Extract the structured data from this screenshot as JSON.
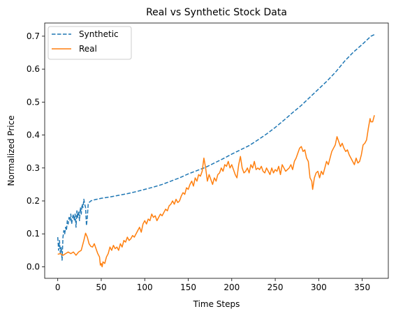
{
  "chart_data": {
    "type": "line",
    "title": "Real vs Synthetic Stock Data",
    "xlabel": "Time Steps",
    "ylabel": "Normalized Price",
    "xlim": [
      -15,
      380
    ],
    "ylim": [
      -0.035,
      0.74
    ],
    "xticks": [
      0,
      50,
      100,
      150,
      200,
      250,
      300,
      350
    ],
    "yticks": [
      0.0,
      0.1,
      0.2,
      0.3,
      0.4,
      0.5,
      0.6,
      0.7
    ],
    "xtick_labels": [
      "0",
      "50",
      "100",
      "150",
      "200",
      "250",
      "300",
      "350"
    ],
    "ytick_labels": [
      "0.0",
      "0.1",
      "0.2",
      "0.3",
      "0.4",
      "0.5",
      "0.6",
      "0.7"
    ],
    "grid": false,
    "legend_position": "upper-left",
    "series": [
      {
        "name": "Synthetic",
        "style": "dashed",
        "color": "#1f77b4",
        "points": [
          [
            0,
            0.09
          ],
          [
            1,
            0.05
          ],
          [
            2,
            0.08
          ],
          [
            3,
            0.04
          ],
          [
            4,
            0.06
          ],
          [
            5,
            0.02
          ],
          [
            6,
            0.09
          ],
          [
            7,
            0.11
          ],
          [
            8,
            0.1
          ],
          [
            9,
            0.12
          ],
          [
            10,
            0.11
          ],
          [
            11,
            0.14
          ],
          [
            12,
            0.13
          ],
          [
            13,
            0.15
          ],
          [
            14,
            0.14
          ],
          [
            15,
            0.16
          ],
          [
            16,
            0.13
          ],
          [
            17,
            0.15
          ],
          [
            18,
            0.16
          ],
          [
            19,
            0.14
          ],
          [
            20,
            0.16
          ],
          [
            21,
            0.12
          ],
          [
            22,
            0.17
          ],
          [
            23,
            0.15
          ],
          [
            24,
            0.17
          ],
          [
            25,
            0.14
          ],
          [
            26,
            0.18
          ],
          [
            27,
            0.16
          ],
          [
            28,
            0.19
          ],
          [
            29,
            0.18
          ],
          [
            30,
            0.205
          ],
          [
            31,
            0.19
          ],
          [
            32,
            0.18
          ],
          [
            33,
            0.125
          ],
          [
            34,
            0.15
          ],
          [
            35,
            0.19
          ],
          [
            36,
            0.195
          ],
          [
            38,
            0.2
          ],
          [
            40,
            0.202
          ],
          [
            45,
            0.205
          ],
          [
            50,
            0.208
          ],
          [
            60,
            0.212
          ],
          [
            70,
            0.217
          ],
          [
            80,
            0.222
          ],
          [
            90,
            0.228
          ],
          [
            100,
            0.235
          ],
          [
            110,
            0.242
          ],
          [
            120,
            0.25
          ],
          [
            130,
            0.26
          ],
          [
            140,
            0.27
          ],
          [
            150,
            0.282
          ],
          [
            160,
            0.292
          ],
          [
            170,
            0.302
          ],
          [
            180,
            0.315
          ],
          [
            190,
            0.328
          ],
          [
            200,
            0.342
          ],
          [
            210,
            0.355
          ],
          [
            220,
            0.368
          ],
          [
            230,
            0.385
          ],
          [
            240,
            0.403
          ],
          [
            250,
            0.423
          ],
          [
            260,
            0.445
          ],
          [
            270,
            0.468
          ],
          [
            280,
            0.49
          ],
          [
            290,
            0.515
          ],
          [
            300,
            0.54
          ],
          [
            310,
            0.565
          ],
          [
            320,
            0.593
          ],
          [
            330,
            0.625
          ],
          [
            340,
            0.652
          ],
          [
            350,
            0.675
          ],
          [
            360,
            0.7
          ],
          [
            364,
            0.705
          ]
        ]
      },
      {
        "name": "Real",
        "style": "solid",
        "color": "#ff7f0e",
        "points": [
          [
            0,
            0.038
          ],
          [
            3,
            0.04
          ],
          [
            6,
            0.035
          ],
          [
            9,
            0.04
          ],
          [
            12,
            0.045
          ],
          [
            15,
            0.04
          ],
          [
            18,
            0.045
          ],
          [
            21,
            0.035
          ],
          [
            24,
            0.045
          ],
          [
            27,
            0.05
          ],
          [
            30,
            0.08
          ],
          [
            32,
            0.102
          ],
          [
            34,
            0.09
          ],
          [
            36,
            0.07
          ],
          [
            38,
            0.062
          ],
          [
            40,
            0.06
          ],
          [
            42,
            0.07
          ],
          [
            44,
            0.055
          ],
          [
            46,
            0.04
          ],
          [
            48,
            0.03
          ],
          [
            49,
            0.005
          ],
          [
            50,
            0.01
          ],
          [
            51,
            0.0
          ],
          [
            52,
            0.015
          ],
          [
            54,
            0.01
          ],
          [
            56,
            0.03
          ],
          [
            58,
            0.04
          ],
          [
            60,
            0.06
          ],
          [
            62,
            0.05
          ],
          [
            64,
            0.065
          ],
          [
            66,
            0.055
          ],
          [
            68,
            0.06
          ],
          [
            70,
            0.05
          ],
          [
            72,
            0.07
          ],
          [
            74,
            0.06
          ],
          [
            76,
            0.08
          ],
          [
            78,
            0.075
          ],
          [
            80,
            0.09
          ],
          [
            82,
            0.08
          ],
          [
            84,
            0.085
          ],
          [
            86,
            0.095
          ],
          [
            88,
            0.09
          ],
          [
            90,
            0.1
          ],
          [
            92,
            0.11
          ],
          [
            94,
            0.12
          ],
          [
            96,
            0.105
          ],
          [
            98,
            0.13
          ],
          [
            100,
            0.14
          ],
          [
            102,
            0.13
          ],
          [
            104,
            0.145
          ],
          [
            106,
            0.14
          ],
          [
            108,
            0.16
          ],
          [
            110,
            0.15
          ],
          [
            112,
            0.155
          ],
          [
            114,
            0.14
          ],
          [
            116,
            0.15
          ],
          [
            118,
            0.16
          ],
          [
            120,
            0.155
          ],
          [
            122,
            0.165
          ],
          [
            124,
            0.175
          ],
          [
            126,
            0.17
          ],
          [
            128,
            0.185
          ],
          [
            130,
            0.19
          ],
          [
            132,
            0.2
          ],
          [
            134,
            0.19
          ],
          [
            136,
            0.205
          ],
          [
            138,
            0.195
          ],
          [
            140,
            0.2
          ],
          [
            142,
            0.215
          ],
          [
            144,
            0.225
          ],
          [
            146,
            0.22
          ],
          [
            148,
            0.24
          ],
          [
            150,
            0.235
          ],
          [
            152,
            0.25
          ],
          [
            154,
            0.26
          ],
          [
            156,
            0.245
          ],
          [
            158,
            0.27
          ],
          [
            160,
            0.26
          ],
          [
            162,
            0.28
          ],
          [
            164,
            0.275
          ],
          [
            166,
            0.29
          ],
          [
            168,
            0.33
          ],
          [
            170,
            0.3
          ],
          [
            172,
            0.26
          ],
          [
            174,
            0.28
          ],
          [
            176,
            0.265
          ],
          [
            178,
            0.25
          ],
          [
            180,
            0.27
          ],
          [
            182,
            0.26
          ],
          [
            184,
            0.28
          ],
          [
            186,
            0.285
          ],
          [
            188,
            0.3
          ],
          [
            190,
            0.29
          ],
          [
            192,
            0.31
          ],
          [
            194,
            0.305
          ],
          [
            196,
            0.32
          ],
          [
            198,
            0.3
          ],
          [
            200,
            0.31
          ],
          [
            202,
            0.295
          ],
          [
            204,
            0.28
          ],
          [
            206,
            0.27
          ],
          [
            208,
            0.31
          ],
          [
            210,
            0.335
          ],
          [
            212,
            0.3
          ],
          [
            214,
            0.285
          ],
          [
            216,
            0.29
          ],
          [
            218,
            0.3
          ],
          [
            220,
            0.285
          ],
          [
            222,
            0.31
          ],
          [
            224,
            0.3
          ],
          [
            226,
            0.32
          ],
          [
            228,
            0.295
          ],
          [
            230,
            0.3
          ],
          [
            232,
            0.295
          ],
          [
            234,
            0.305
          ],
          [
            236,
            0.29
          ],
          [
            238,
            0.285
          ],
          [
            240,
            0.3
          ],
          [
            242,
            0.29
          ],
          [
            244,
            0.28
          ],
          [
            246,
            0.3
          ],
          [
            248,
            0.285
          ],
          [
            250,
            0.295
          ],
          [
            252,
            0.29
          ],
          [
            254,
            0.305
          ],
          [
            256,
            0.28
          ],
          [
            258,
            0.31
          ],
          [
            260,
            0.3
          ],
          [
            262,
            0.29
          ],
          [
            264,
            0.295
          ],
          [
            266,
            0.3
          ],
          [
            268,
            0.31
          ],
          [
            270,
            0.295
          ],
          [
            272,
            0.32
          ],
          [
            274,
            0.33
          ],
          [
            276,
            0.345
          ],
          [
            278,
            0.36
          ],
          [
            280,
            0.365
          ],
          [
            282,
            0.35
          ],
          [
            284,
            0.355
          ],
          [
            286,
            0.33
          ],
          [
            288,
            0.32
          ],
          [
            290,
            0.27
          ],
          [
            292,
            0.26
          ],
          [
            293,
            0.235
          ],
          [
            295,
            0.27
          ],
          [
            297,
            0.285
          ],
          [
            299,
            0.29
          ],
          [
            301,
            0.27
          ],
          [
            303,
            0.29
          ],
          [
            305,
            0.28
          ],
          [
            307,
            0.3
          ],
          [
            309,
            0.32
          ],
          [
            311,
            0.31
          ],
          [
            313,
            0.33
          ],
          [
            315,
            0.35
          ],
          [
            317,
            0.36
          ],
          [
            319,
            0.37
          ],
          [
            321,
            0.395
          ],
          [
            323,
            0.38
          ],
          [
            325,
            0.365
          ],
          [
            327,
            0.375
          ],
          [
            329,
            0.36
          ],
          [
            331,
            0.35
          ],
          [
            333,
            0.355
          ],
          [
            335,
            0.34
          ],
          [
            337,
            0.33
          ],
          [
            339,
            0.32
          ],
          [
            341,
            0.31
          ],
          [
            343,
            0.33
          ],
          [
            345,
            0.315
          ],
          [
            347,
            0.32
          ],
          [
            349,
            0.34
          ],
          [
            351,
            0.37
          ],
          [
            353,
            0.375
          ],
          [
            355,
            0.385
          ],
          [
            357,
            0.42
          ],
          [
            359,
            0.45
          ],
          [
            360,
            0.44
          ],
          [
            362,
            0.44
          ],
          [
            364,
            0.46
          ]
        ]
      }
    ]
  }
}
